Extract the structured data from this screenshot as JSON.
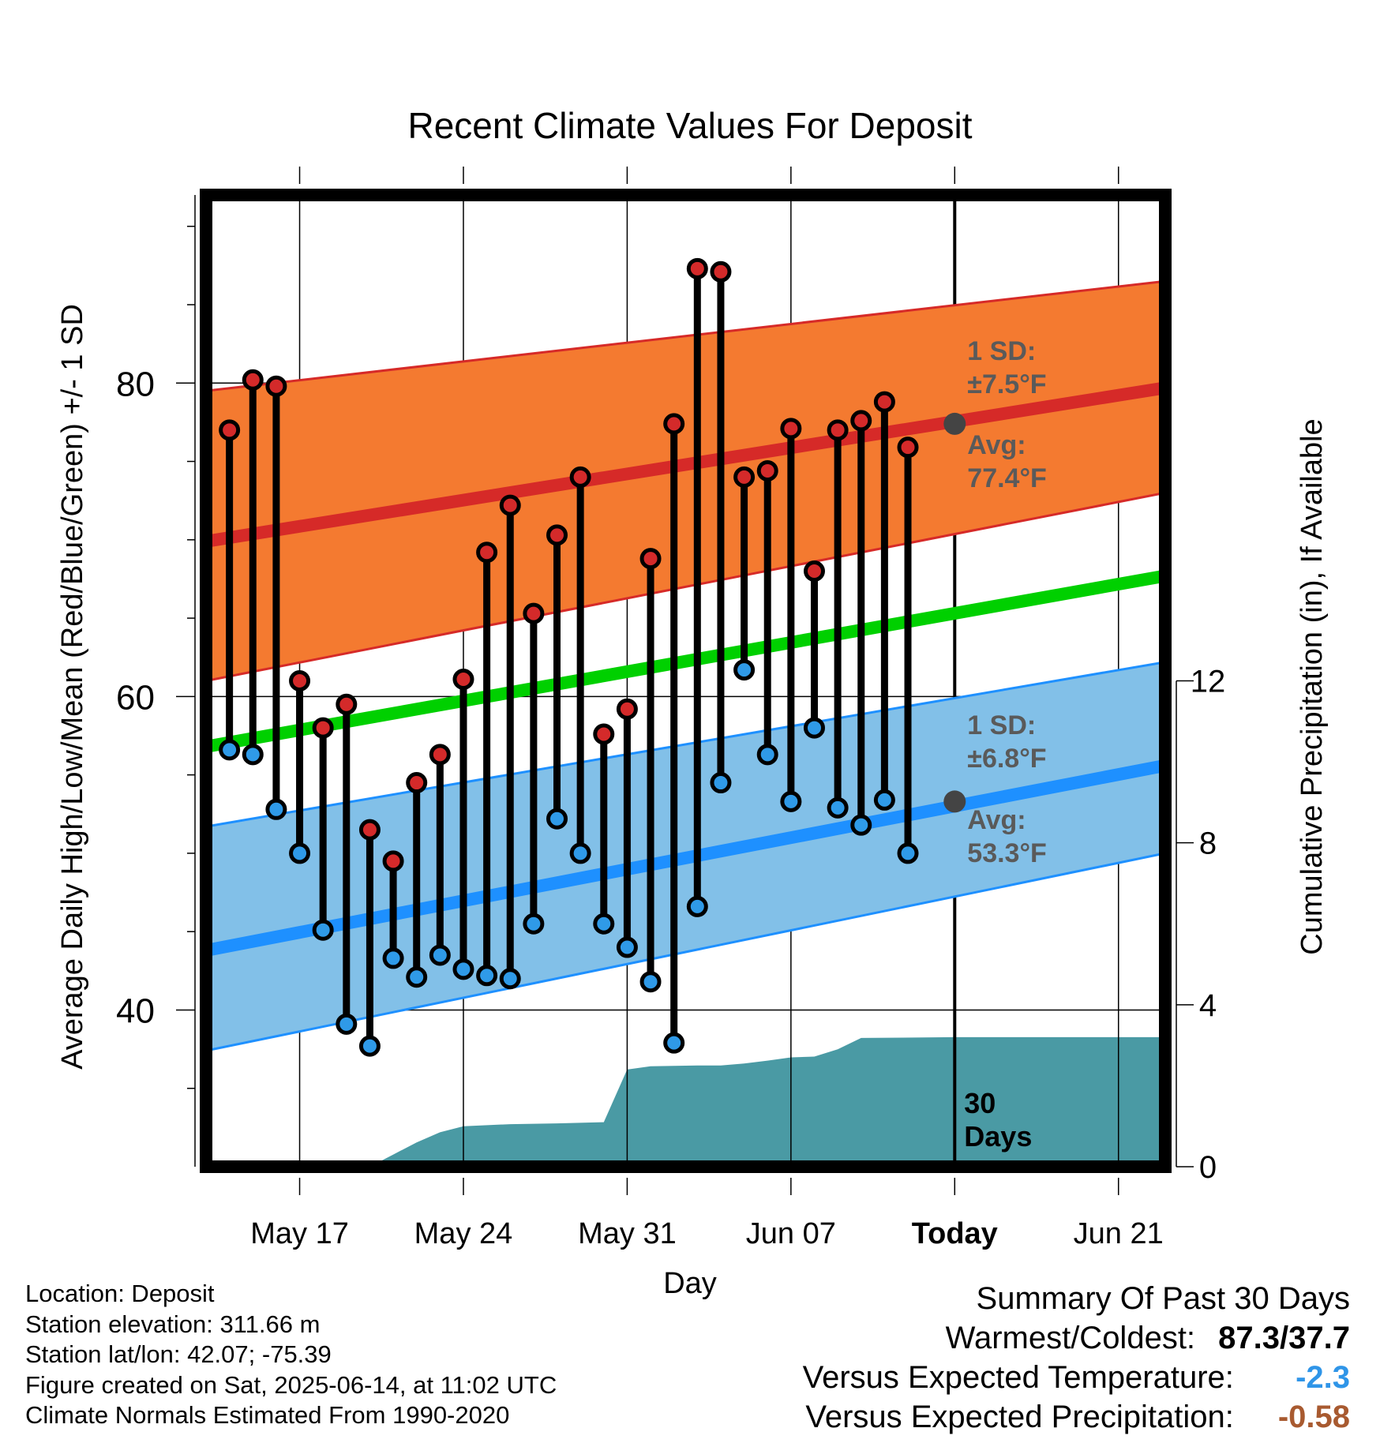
{
  "chart_data": {
    "type": "line",
    "title": "Recent Climate Values For Deposit",
    "xlabel": "Day",
    "ylabel": "Average Daily High/Low/Mean (Red/Blue/Green) +/- 1 SD",
    "y2label": "Cumulative Precipitation (in), If Available",
    "ylim": [
      30,
      92
    ],
    "y2lim": [
      0,
      24
    ],
    "yticks": [
      40,
      60,
      80
    ],
    "y2ticks": [
      0,
      4,
      8,
      12
    ],
    "x_range": [
      "2025-05-13",
      "2025-06-23"
    ],
    "xticks": [
      {
        "date": "2025-05-17",
        "label": "May 17"
      },
      {
        "date": "2025-05-24",
        "label": "May 24"
      },
      {
        "date": "2025-05-31",
        "label": "May 31"
      },
      {
        "date": "2025-06-07",
        "label": "Jun 07"
      },
      {
        "date": "2025-06-14",
        "label": "Today"
      },
      {
        "date": "2025-06-21",
        "label": "Jun 21"
      }
    ],
    "today": "2025-06-14",
    "today_label": "30\nDays",
    "normals": {
      "dates": [
        "2025-05-13",
        "2025-06-23"
      ],
      "avg_high": [
        69.9,
        79.7
      ],
      "high_sd_upper": [
        79.5,
        86.5
      ],
      "high_sd_lower": [
        61.0,
        73.0
      ],
      "avg_low": [
        43.8,
        55.6
      ],
      "low_sd_upper": [
        51.7,
        62.2
      ],
      "low_sd_lower": [
        37.4,
        50.0
      ],
      "avg_mean": [
        56.8,
        67.7
      ]
    },
    "annotations": {
      "high_sd": "1 SD:\n±7.5°F",
      "high_avg": "Avg:\n77.4°F",
      "low_sd": "1 SD:\n±6.8°F",
      "low_avg": "Avg:\n53.3°F",
      "today_high_avg": 77.4,
      "today_low_avg": 53.3
    },
    "series": [
      {
        "dates": [
          "2025-05-14",
          "2025-05-15",
          "2025-05-16",
          "2025-05-17",
          "2025-05-18",
          "2025-05-19",
          "2025-05-20",
          "2025-05-21",
          "2025-05-22",
          "2025-05-23",
          "2025-05-24",
          "2025-05-25",
          "2025-05-26",
          "2025-05-27",
          "2025-05-28",
          "2025-05-29",
          "2025-05-30",
          "2025-05-31",
          "2025-06-01",
          "2025-06-02",
          "2025-06-03",
          "2025-06-04",
          "2025-06-05",
          "2025-06-06",
          "2025-06-07",
          "2025-06-08",
          "2025-06-09",
          "2025-06-10",
          "2025-06-11",
          "2025-06-12",
          "2025-06-13"
        ],
        "high": [
          77.0,
          80.2,
          79.8,
          61.0,
          58.0,
          59.5,
          51.5,
          49.5,
          54.5,
          56.3,
          61.1,
          69.2,
          72.2,
          65.3,
          70.3,
          74.0,
          57.6,
          59.2,
          68.8,
          77.4,
          87.3,
          87.1,
          74.0,
          74.4,
          77.1,
          68.0,
          77.0,
          77.6,
          78.8,
          75.9,
          null
        ],
        "low": [
          56.6,
          56.3,
          52.8,
          50.0,
          45.1,
          39.1,
          37.7,
          43.3,
          42.1,
          43.5,
          42.6,
          42.2,
          42.0,
          45.5,
          52.2,
          50.0,
          45.5,
          44.0,
          41.8,
          37.9,
          46.6,
          54.5,
          61.7,
          56.3,
          53.3,
          58.0,
          52.9,
          51.8,
          53.4,
          50.0,
          null
        ]
      }
    ],
    "precip": {
      "dates": [
        "2025-05-16",
        "2025-05-17",
        "2025-05-18",
        "2025-05-19",
        "2025-05-20",
        "2025-05-21",
        "2025-05-22",
        "2025-05-23",
        "2025-05-24",
        "2025-05-26",
        "2025-05-28",
        "2025-05-30",
        "2025-05-31",
        "2025-06-01",
        "2025-06-03",
        "2025-06-04",
        "2025-06-05",
        "2025-06-06",
        "2025-06-07",
        "2025-06-08",
        "2025-06-09",
        "2025-06-10",
        "2025-06-14",
        "2025-06-23"
      ],
      "values": [
        0,
        0,
        0,
        0,
        0,
        0.3,
        0.6,
        0.85,
        1.0,
        1.05,
        1.07,
        1.1,
        2.4,
        2.48,
        2.5,
        2.5,
        2.55,
        2.62,
        2.7,
        2.72,
        2.9,
        3.18,
        3.2,
        3.2
      ]
    }
  },
  "footer": {
    "location": "Location: Deposit",
    "elevation": "Station elevation: 311.66 m",
    "latlon": "Station lat/lon: 42.07; -75.39",
    "created": "Figure created on Sat, 2025-06-14, at 11:02 UTC",
    "normals": "Climate Normals Estimated From 1990-2020"
  },
  "summary": {
    "title": "Summary Of Past 30 Days",
    "warm_cold_label": "Warmest/Coldest:",
    "warm_cold_value": "87.3/37.7",
    "temp_label": "Versus Expected Temperature:",
    "temp_value": "-2.3",
    "precip_label": "Versus Expected Precipitation:",
    "precip_value": "-0.58"
  },
  "colors": {
    "high_band": "#f47a30",
    "high_line": "#d62a28",
    "low_band": "#82c0e8",
    "low_line": "#1e90ff",
    "mean_line": "#00d000",
    "precip": "#4a9aa4",
    "dot_high": "#d42a2a",
    "dot_low": "#2f9ae8",
    "annot": "#5a5a5a",
    "temp_value": "#2f95e8",
    "precip_value": "#a85a30"
  }
}
